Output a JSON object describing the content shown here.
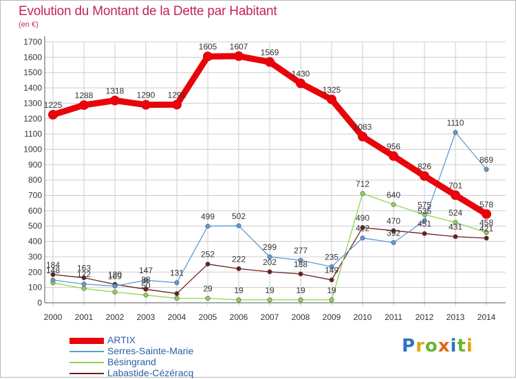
{
  "title": "Evolution du Montant de la Dette par Habitant",
  "subtitle": "(en €)",
  "logo": "Proxiti",
  "chart_data": {
    "type": "line",
    "title": "Evolution du Montant de la Dette par Habitant",
    "subtitle": "(en €)",
    "xlabel": "",
    "ylabel": "",
    "ylim": [
      0,
      1700
    ],
    "yticks": [
      0,
      100,
      200,
      300,
      400,
      500,
      600,
      700,
      800,
      900,
      1000,
      1100,
      1200,
      1300,
      1400,
      1500,
      1600,
      1700
    ],
    "grid": true,
    "legend": "bottom-left",
    "x": [
      "2000",
      "2001",
      "2002",
      "2003",
      "2004",
      "2005",
      "2006",
      "2007",
      "2008",
      "2009",
      "2010",
      "2011",
      "2012",
      "2013",
      "2014"
    ],
    "series": [
      {
        "name": "ARTIX",
        "color": "#e8040a",
        "values": [
          1225,
          1288,
          1318,
          1290,
          1291,
          1605,
          1607,
          1569,
          1430,
          1325,
          1083,
          956,
          826,
          701,
          578
        ],
        "labels": [
          "1225",
          "1288",
          "1318",
          "1290",
          "1291",
          "1605",
          "1607",
          "1569",
          "1430",
          "1325",
          "1083",
          "956",
          "826",
          "701",
          "578"
        ]
      },
      {
        "name": "Serres-Sainte-Marie",
        "color": "#5b9bd5",
        "values": [
          148,
          122,
          109,
          147,
          131,
          499,
          502,
          299,
          277,
          235,
          422,
          392,
          535,
          1110,
          869
        ],
        "labels": [
          "148",
          "122",
          "109",
          "147",
          "131",
          "499",
          "502",
          "299",
          "277",
          "235",
          "422",
          "392",
          "535",
          "1110",
          "869"
        ]
      },
      {
        "name": "Bésingrand",
        "color": "#8ed44e",
        "values": [
          130,
          93,
          70,
          50,
          29,
          29,
          19,
          19,
          19,
          19,
          712,
          640,
          575,
          524,
          458
        ],
        "labels": [
          "",
          "",
          "",
          "50",
          "",
          "29",
          "19",
          "19",
          "19",
          "19",
          "712",
          "640",
          "575",
          "524",
          "458"
        ]
      },
      {
        "name": "Labastide-Cézéracq",
        "color": "#6b1e1e",
        "values": [
          184,
          163,
          120,
          88,
          60,
          252,
          222,
          202,
          188,
          149,
          490,
          470,
          451,
          431,
          421
        ],
        "labels": [
          "184",
          "163",
          "120",
          "88",
          "",
          "252",
          "222",
          "202",
          "188",
          "149",
          "490",
          "470",
          "451",
          "431",
          "421"
        ]
      }
    ]
  },
  "colors": {
    "title": "#c3245a",
    "axis_text": "#333333",
    "grid": "#cccccc",
    "legend_text": "#2b5fa6",
    "logo_p": "#2c74c4",
    "logo_r": "#e0a317",
    "logo_o": "#6ab52f",
    "logo_x": "#e06a12",
    "logo_i": "#2c74c4",
    "logo_t": "#6ab52f",
    "logo_i2": "#e0a317"
  }
}
